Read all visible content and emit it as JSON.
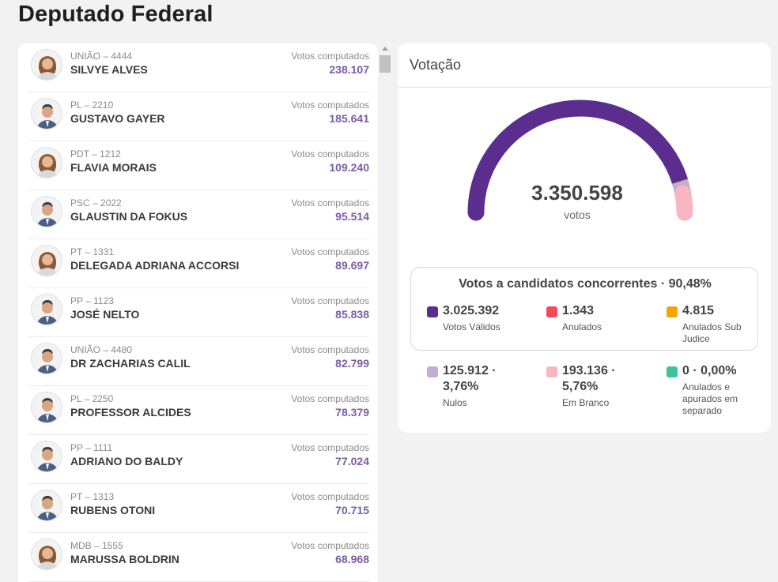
{
  "page": {
    "title": "Deputado Federal"
  },
  "candidates": [
    {
      "party": "UNIÃO – 4444",
      "name": "SILVYE ALVES",
      "votes_label": "Votos computados",
      "votes": "238.107",
      "gender": "f"
    },
    {
      "party": "PL – 2210",
      "name": "GUSTAVO GAYER",
      "votes_label": "Votos computados",
      "votes": "185.641",
      "gender": "m"
    },
    {
      "party": "PDT – 1212",
      "name": "FLAVIA MORAIS",
      "votes_label": "Votos computados",
      "votes": "109.240",
      "gender": "f"
    },
    {
      "party": "PSC – 2022",
      "name": "GLAUSTIN DA FOKUS",
      "votes_label": "Votos computados",
      "votes": "95.514",
      "gender": "m"
    },
    {
      "party": "PT – 1331",
      "name": "DELEGADA ADRIANA ACCORSI",
      "votes_label": "Votos computados",
      "votes": "89.697",
      "gender": "f"
    },
    {
      "party": "PP – 1123",
      "name": "JOSÉ NELTO",
      "votes_label": "Votos computados",
      "votes": "85.838",
      "gender": "m"
    },
    {
      "party": "UNIÃO – 4480",
      "name": "DR ZACHARIAS CALIL",
      "votes_label": "Votos computados",
      "votes": "82.799",
      "gender": "m"
    },
    {
      "party": "PL – 2250",
      "name": "PROFESSOR ALCIDES",
      "votes_label": "Votos computados",
      "votes": "78.379",
      "gender": "m"
    },
    {
      "party": "PP – 1111",
      "name": "ADRIANO DO BALDY",
      "votes_label": "Votos computados",
      "votes": "77.024",
      "gender": "m"
    },
    {
      "party": "PT – 1313",
      "name": "RUBENS OTONI",
      "votes_label": "Votos computados",
      "votes": "70.715",
      "gender": "m"
    },
    {
      "party": "MDB – 1555",
      "name": "MARUSSA BOLDRIN",
      "votes_label": "Votos computados",
      "votes": "68.968",
      "gender": "f"
    }
  ],
  "votacao": {
    "title": "Votação",
    "total": "3.350.598",
    "unit": "votos",
    "gauge_fractions": {
      "validos": 0.903,
      "anulados": 0.0004,
      "sub_judice": 0.0014,
      "nulos": 0.0376,
      "branco": 0.0576
    },
    "concorrentes": {
      "title": "Votos a candidatos concorrentes · 90,48%",
      "items": [
        {
          "value": "3.025.392",
          "label": [
            "Votos Válidos"
          ],
          "color": "#5b2d8e"
        },
        {
          "value": "1.343",
          "label": [
            "Anulados"
          ],
          "color": "#f24a5c"
        },
        {
          "value": "4.815",
          "label": [
            "Anulados Sub",
            "Judice"
          ],
          "color": "#f5a400"
        }
      ]
    },
    "others": [
      {
        "value": [
          "125.912 ·",
          "3,76%"
        ],
        "label": [
          "Nulos"
        ],
        "color": "#c4acd8"
      },
      {
        "value": [
          "193.136 ·",
          "5,76%"
        ],
        "label": [
          "Em Branco"
        ],
        "color": "#f7b6c2"
      },
      {
        "value": [
          "0 · 0,00%"
        ],
        "label": [
          "Anulados e",
          "apurados em",
          "separado"
        ],
        "color": "#3ec49a"
      }
    ]
  }
}
